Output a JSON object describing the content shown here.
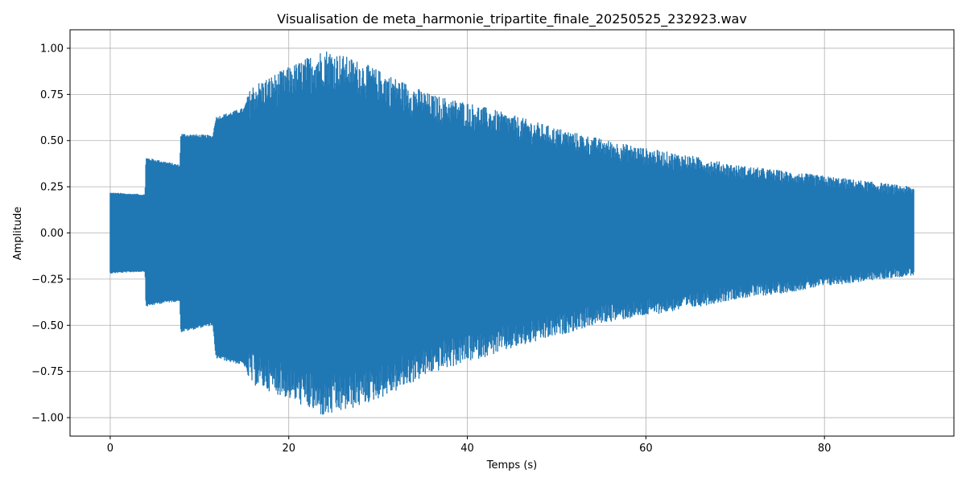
{
  "chart_data": {
    "type": "line",
    "title": "Visualisation de meta_harmonie_tripartite_finale_20250525_232923.wav",
    "xlabel": "Temps (s)",
    "ylabel": "Amplitude",
    "xlim": [
      -4.5,
      94.5
    ],
    "ylim": [
      -1.1,
      1.1
    ],
    "xticks": [
      0,
      20,
      40,
      60,
      80
    ],
    "yticks": [
      -1.0,
      -0.75,
      -0.5,
      -0.25,
      0.0,
      0.25,
      0.5,
      0.75,
      1.0
    ],
    "xtick_labels": [
      "0",
      "20",
      "40",
      "60",
      "80"
    ],
    "ytick_labels": [
      "−1.00",
      "−0.75",
      "−0.50",
      "−0.25",
      "0.00",
      "0.25",
      "0.50",
      "0.75",
      "1.00"
    ],
    "grid": true,
    "line_color": "#1f77b4",
    "series": [
      {
        "envelope": [
          {
            "t": 0.0,
            "max": 0.22,
            "min": -0.22
          },
          {
            "t": 3.9,
            "max": 0.21,
            "min": -0.21
          },
          {
            "t": 4.0,
            "max": 0.41,
            "min": -0.4
          },
          {
            "t": 6.0,
            "max": 0.39,
            "min": -0.38
          },
          {
            "t": 7.8,
            "max": 0.37,
            "min": -0.37
          },
          {
            "t": 7.9,
            "max": 0.54,
            "min": -0.54
          },
          {
            "t": 11.5,
            "max": 0.53,
            "min": -0.5
          },
          {
            "t": 11.8,
            "max": 0.63,
            "min": -0.68
          },
          {
            "t": 15.0,
            "max": 0.68,
            "min": -0.72
          },
          {
            "t": 15.8,
            "max": 0.8,
            "min": -0.82
          },
          {
            "t": 20.0,
            "max": 0.9,
            "min": -0.9
          },
          {
            "t": 24.0,
            "max": 1.0,
            "min": -1.0
          },
          {
            "t": 28.0,
            "max": 0.93,
            "min": -0.94
          },
          {
            "t": 32.0,
            "max": 0.84,
            "min": -0.86
          },
          {
            "t": 36.0,
            "max": 0.75,
            "min": -0.76
          },
          {
            "t": 40.0,
            "max": 0.71,
            "min": -0.7
          },
          {
            "t": 45.0,
            "max": 0.64,
            "min": -0.63
          },
          {
            "t": 50.0,
            "max": 0.57,
            "min": -0.56
          },
          {
            "t": 55.0,
            "max": 0.51,
            "min": -0.49
          },
          {
            "t": 60.0,
            "max": 0.46,
            "min": -0.45
          },
          {
            "t": 65.0,
            "max": 0.42,
            "min": -0.41
          },
          {
            "t": 70.0,
            "max": 0.37,
            "min": -0.36
          },
          {
            "t": 75.0,
            "max": 0.34,
            "min": -0.33
          },
          {
            "t": 80.0,
            "max": 0.31,
            "min": -0.29
          },
          {
            "t": 85.0,
            "max": 0.28,
            "min": -0.26
          },
          {
            "t": 90.0,
            "max": 0.25,
            "min": -0.23
          }
        ]
      }
    ]
  }
}
